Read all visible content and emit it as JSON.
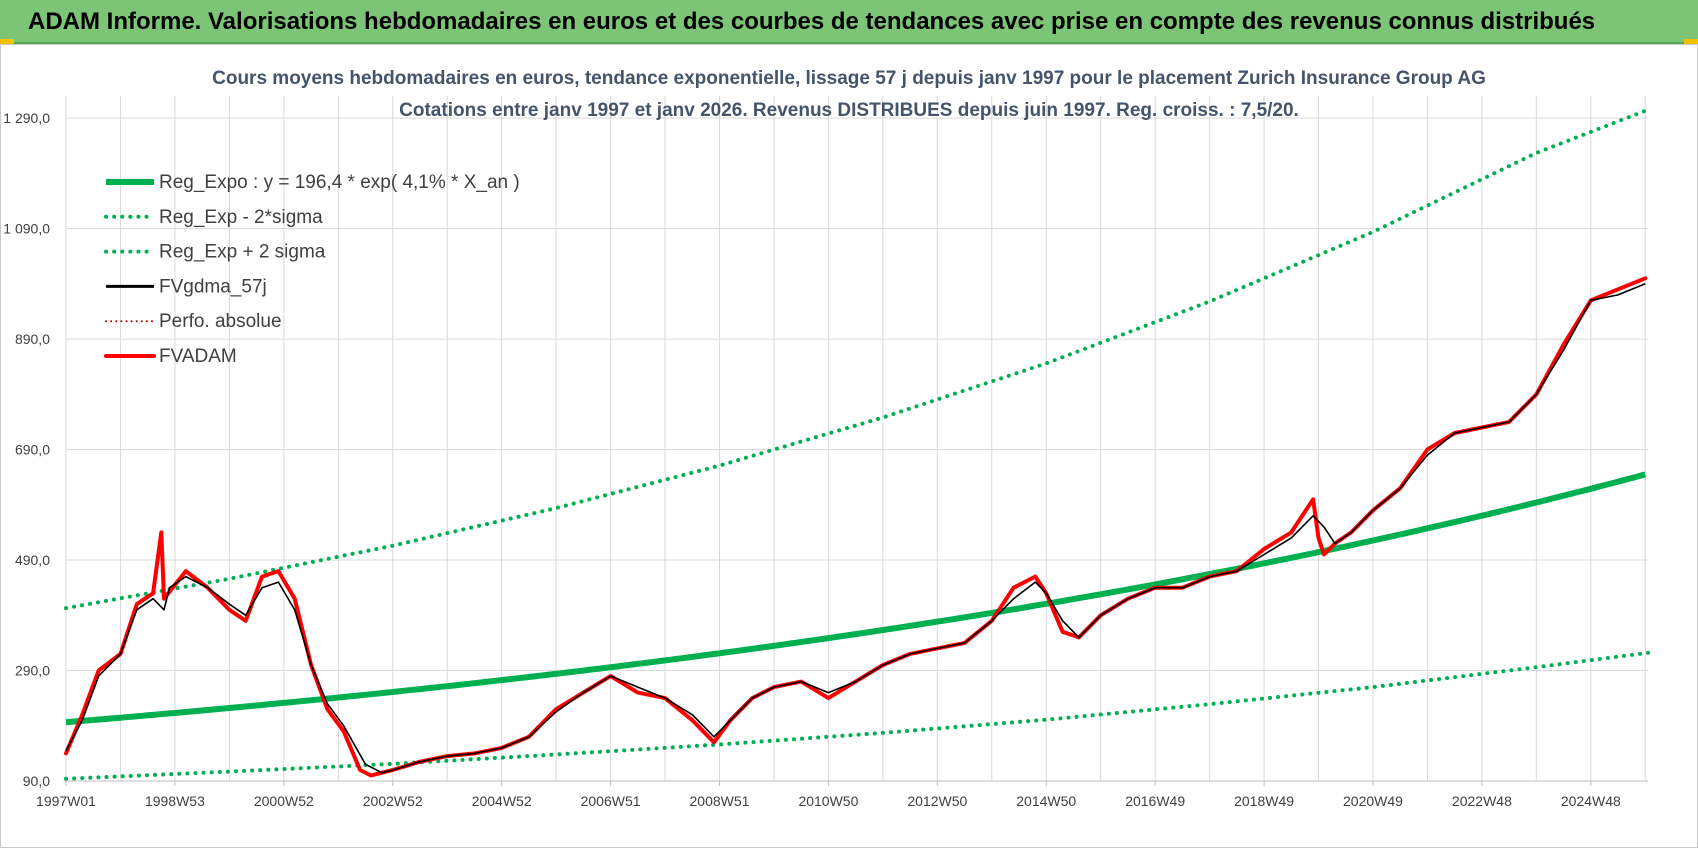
{
  "banner": {
    "title": "ADAM Informe. Valorisations hebdomadaires en euros et des courbes de tendances avec prise en compte des revenus connus distribués"
  },
  "colors": {
    "banner_bg": "#7cc576",
    "reg_expo": "#00b050",
    "sigma": "#00b050",
    "fvgdma": "#000000",
    "perfo": "#c00000",
    "fvadam": "#ff0000",
    "grid": "#d9d9d9",
    "title_text": "#44546a"
  },
  "chart_data": {
    "type": "line",
    "title": "Cours moyens hebdomadaires en euros, tendance exponentielle, lissage 57 j depuis janv 1997  pour le placement Zurich Insurance Group AG",
    "subtitle": "Cotations entre janv 1997 et janv 2026. Revenus DISTRIBUES depuis juin 1997. Reg. croiss. : 7,5/20.",
    "x_range": [
      1997.0,
      2026.05
    ],
    "ylim": [
      90,
      1330
    ],
    "yticks": [
      90,
      290,
      490,
      690,
      890,
      1090,
      1290
    ],
    "ytick_labels": [
      "90,0",
      "290,0",
      "490,0",
      "690,0",
      "890,0",
      "1 090,0",
      "1 290,0"
    ],
    "xticks": [
      1997.0,
      1999.0,
      2001.0,
      2003.0,
      2005.0,
      2007.0,
      2009.0,
      2011.0,
      2013.0,
      2015.0,
      2017.0,
      2019.0,
      2021.0,
      2023.0,
      2025.0
    ],
    "xtick_labels": [
      "1997W01",
      "1998W53",
      "2000W52",
      "2002W52",
      "2004W52",
      "2006W51",
      "2008W51",
      "2010W50",
      "2012W50",
      "2014W50",
      "2016W49",
      "2018W49",
      "2020W49",
      "2022W48",
      "2024W48"
    ],
    "grid": true,
    "legend_position": "top-left",
    "series": [
      {
        "name": "Reg_Expo : y = 196,4 * exp( 4,1% *  X_an )",
        "style": "solid-thick",
        "formula": {
          "a": 196.4,
          "rate": 0.041
        },
        "x": [
          1997,
          2000,
          2003,
          2006,
          2009,
          2012,
          2015,
          2018,
          2021,
          2024,
          2026.05
        ],
        "values": [
          199,
          225,
          254,
          288,
          326,
          368,
          416,
          470,
          531,
          600,
          649
        ]
      },
      {
        "name": "Reg_Exp - 2*sigma",
        "style": "dotted",
        "x": [
          1997,
          2000,
          2003,
          2006,
          2009,
          2012,
          2015,
          2018,
          2021,
          2024,
          2026.05
        ],
        "values": [
          94,
          107,
          121,
          138,
          156,
          177,
          201,
          229,
          260,
          296,
          322
        ]
      },
      {
        "name": "Reg_Exp + 2 sigma",
        "style": "dotted",
        "x": [
          1997,
          2000,
          2003,
          2006,
          2009,
          2012,
          2015,
          2018,
          2021,
          2024,
          2026.05
        ],
        "values": [
          403,
          456,
          516,
          584,
          661,
          748,
          846,
          958,
          1084,
          1227,
          1305
        ]
      },
      {
        "name": "FVgdma_57j",
        "style": "solid",
        "x": [
          1997.0,
          1997.3,
          1997.6,
          1998.0,
          1998.3,
          1998.6,
          1998.8,
          1998.9,
          1999.2,
          1999.6,
          2000.0,
          2000.3,
          2000.6,
          2000.9,
          2001.2,
          2001.5,
          2001.8,
          2002.1,
          2002.5,
          2002.8,
          2003.0,
          2003.5,
          2004.0,
          2004.5,
          2005.0,
          2005.5,
          2006.0,
          2006.5,
          2007.0,
          2007.5,
          2008.0,
          2008.5,
          2008.9,
          2009.2,
          2009.6,
          2010.0,
          2010.5,
          2011.0,
          2011.5,
          2012.0,
          2012.5,
          2013.0,
          2013.5,
          2014.0,
          2014.4,
          2014.8,
          2015.0,
          2015.3,
          2015.6,
          2016.0,
          2016.5,
          2017.0,
          2017.5,
          2018.0,
          2018.5,
          2019.0,
          2019.5,
          2019.9,
          2020.1,
          2020.3,
          2020.6,
          2021.0,
          2021.5,
          2022.0,
          2022.5,
          2023.0,
          2023.5,
          2024.0,
          2024.5,
          2025.0,
          2025.5,
          2026.0
        ],
        "values": [
          145,
          200,
          280,
          320,
          400,
          420,
          400,
          440,
          460,
          440,
          410,
          390,
          440,
          450,
          400,
          300,
          230,
          190,
          120,
          105,
          110,
          125,
          135,
          140,
          150,
          170,
          215,
          250,
          280,
          260,
          240,
          210,
          170,
          200,
          240,
          260,
          270,
          250,
          270,
          300,
          320,
          330,
          340,
          380,
          420,
          450,
          430,
          380,
          350,
          390,
          420,
          440,
          440,
          460,
          470,
          500,
          530,
          570,
          550,
          520,
          540,
          580,
          620,
          680,
          720,
          730,
          740,
          790,
          870,
          960,
          970,
          990
        ]
      },
      {
        "name": "Perfo. absolue",
        "style": "dotted",
        "x": [
          1997.0,
          1997.3,
          1997.6,
          1998.0,
          1998.3,
          1998.6,
          1998.75,
          1998.8,
          1999.2,
          1999.6,
          2000.0,
          2000.3,
          2000.6,
          2000.9,
          2001.2,
          2001.5,
          2001.8,
          2002.1,
          2002.4,
          2002.6,
          2002.8,
          2003.0,
          2003.5,
          2004.0,
          2004.5,
          2005.0,
          2005.5,
          2006.0,
          2006.5,
          2007.0,
          2007.5,
          2008.0,
          2008.5,
          2008.9,
          2009.2,
          2009.6,
          2010.0,
          2010.5,
          2011.0,
          2011.5,
          2012.0,
          2012.5,
          2013.0,
          2013.5,
          2014.0,
          2014.4,
          2014.8,
          2015.0,
          2015.3,
          2015.6,
          2016.0,
          2016.5,
          2017.0,
          2017.5,
          2018.0,
          2018.5,
          2019.0,
          2019.5,
          2019.9,
          2020.0,
          2020.1,
          2020.3,
          2020.6,
          2021.0,
          2021.5,
          2022.0,
          2022.5,
          2023.0,
          2023.5,
          2024.0,
          2024.5,
          2025.0,
          2025.5,
          2026.0
        ],
        "values": [
          140,
          210,
          290,
          320,
          410,
          430,
          540,
          420,
          470,
          440,
          400,
          380,
          460,
          470,
          420,
          300,
          220,
          180,
          110,
          100,
          105,
          110,
          125,
          135,
          140,
          150,
          170,
          220,
          250,
          280,
          250,
          240,
          200,
          160,
          200,
          240,
          260,
          270,
          240,
          270,
          300,
          320,
          330,
          340,
          380,
          440,
          460,
          430,
          360,
          350,
          390,
          420,
          440,
          440,
          460,
          470,
          510,
          540,
          600,
          530,
          500,
          520,
          540,
          580,
          620,
          690,
          720,
          730,
          740,
          790,
          880,
          960,
          980,
          1000
        ]
      },
      {
        "name": "FVADAM",
        "style": "solid-thick",
        "x": [
          1997.0,
          1997.3,
          1997.6,
          1998.0,
          1998.3,
          1998.6,
          1998.75,
          1998.8,
          1999.2,
          1999.6,
          2000.0,
          2000.3,
          2000.6,
          2000.9,
          2001.2,
          2001.5,
          2001.8,
          2002.1,
          2002.4,
          2002.6,
          2002.8,
          2003.0,
          2003.5,
          2004.0,
          2004.5,
          2005.0,
          2005.5,
          2006.0,
          2006.5,
          2007.0,
          2007.5,
          2008.0,
          2008.5,
          2008.9,
          2009.2,
          2009.6,
          2010.0,
          2010.5,
          2011.0,
          2011.5,
          2012.0,
          2012.5,
          2013.0,
          2013.5,
          2014.0,
          2014.4,
          2014.8,
          2015.0,
          2015.3,
          2015.6,
          2016.0,
          2016.5,
          2017.0,
          2017.5,
          2018.0,
          2018.5,
          2019.0,
          2019.5,
          2019.9,
          2020.0,
          2020.1,
          2020.3,
          2020.6,
          2021.0,
          2021.5,
          2022.0,
          2022.5,
          2023.0,
          2023.5,
          2024.0,
          2024.5,
          2025.0,
          2025.5,
          2026.0
        ],
        "values": [
          140,
          210,
          290,
          320,
          410,
          430,
          540,
          420,
          470,
          440,
          400,
          380,
          460,
          470,
          420,
          300,
          220,
          180,
          110,
          100,
          105,
          110,
          125,
          135,
          140,
          150,
          170,
          220,
          250,
          280,
          250,
          240,
          200,
          160,
          200,
          240,
          260,
          270,
          240,
          270,
          300,
          320,
          330,
          340,
          380,
          440,
          460,
          430,
          360,
          350,
          390,
          420,
          440,
          440,
          460,
          470,
          510,
          540,
          600,
          530,
          500,
          520,
          540,
          580,
          620,
          690,
          720,
          730,
          740,
          790,
          880,
          960,
          980,
          1000
        ]
      }
    ]
  }
}
